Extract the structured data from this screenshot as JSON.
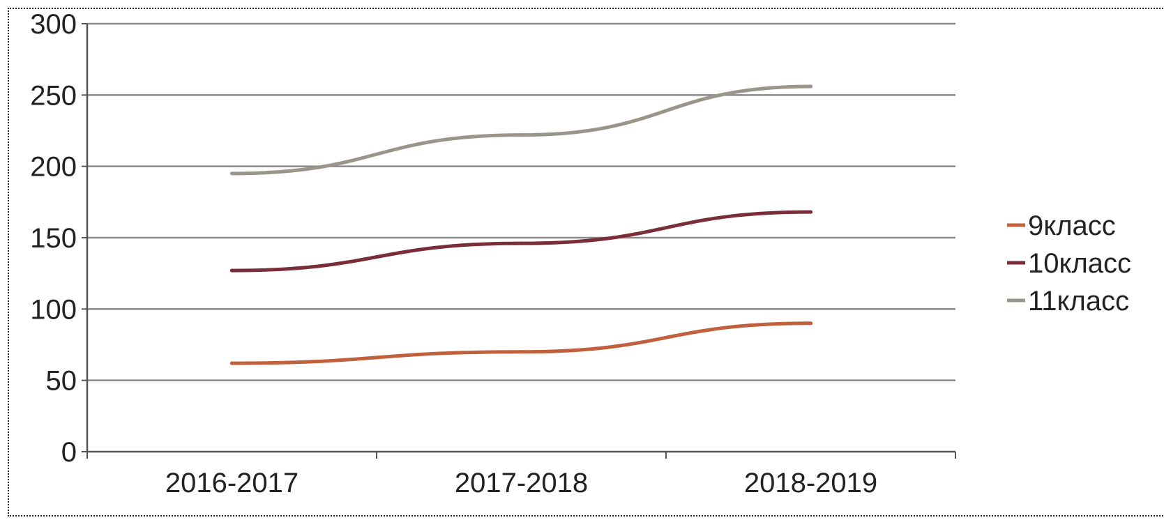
{
  "chart_data": {
    "type": "line",
    "title": "",
    "xlabel": "",
    "ylabel": "",
    "categories": [
      "2016-2017",
      "2017-2018",
      "2018-2019"
    ],
    "ylim": [
      0,
      300
    ],
    "yticks": [
      0,
      50,
      100,
      150,
      200,
      250,
      300
    ],
    "grid": true,
    "legend_position": "right",
    "series": [
      {
        "name": "9класс",
        "color": "#c0603c",
        "values": [
          62,
          70,
          90
        ]
      },
      {
        "name": "10класс",
        "color": "#7a2e38",
        "values": [
          127,
          146,
          168
        ]
      },
      {
        "name": "11класс",
        "color": "#9a948a",
        "values": [
          195,
          222,
          256
        ]
      }
    ]
  }
}
